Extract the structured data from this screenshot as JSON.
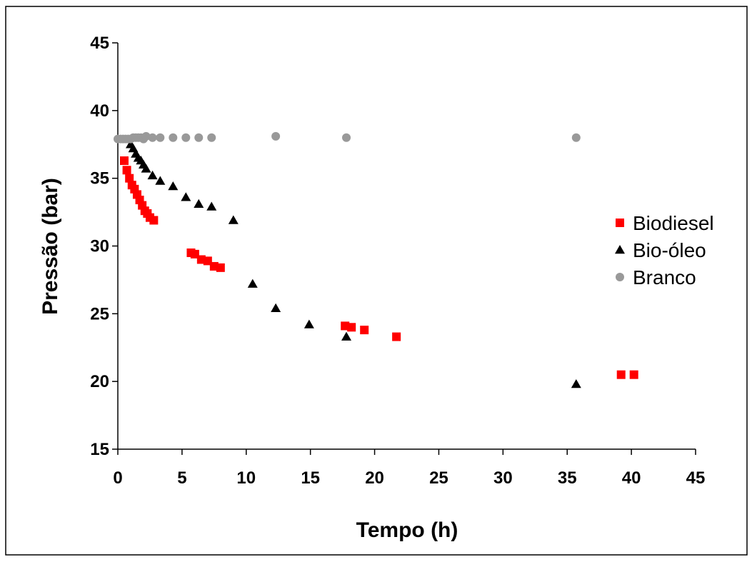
{
  "chart_data": {
    "type": "scatter",
    "xlabel": "Tempo (h)",
    "ylabel": "Pressão (bar)",
    "xlim": [
      0,
      45
    ],
    "ylim": [
      15,
      45
    ],
    "xticks": [
      0,
      5,
      10,
      15,
      20,
      25,
      30,
      35,
      40,
      45
    ],
    "yticks": [
      15,
      20,
      25,
      30,
      35,
      40,
      45
    ],
    "grid": false,
    "legend_position": "right",
    "series": [
      {
        "name": "Biodiesel",
        "marker": "square",
        "color": "#ff0000",
        "points": [
          [
            0.5,
            36.3
          ],
          [
            0.7,
            35.6
          ],
          [
            0.9,
            35.0
          ],
          [
            1.1,
            34.5
          ],
          [
            1.3,
            34.2
          ],
          [
            1.5,
            33.8
          ],
          [
            1.7,
            33.4
          ],
          [
            1.9,
            33.0
          ],
          [
            2.1,
            32.6
          ],
          [
            2.3,
            32.4
          ],
          [
            2.5,
            32.1
          ],
          [
            2.8,
            31.9
          ],
          [
            5.7,
            29.5
          ],
          [
            6.0,
            29.4
          ],
          [
            6.5,
            29.0
          ],
          [
            7.0,
            28.9
          ],
          [
            7.5,
            28.5
          ],
          [
            8.0,
            28.4
          ],
          [
            17.7,
            24.1
          ],
          [
            18.2,
            24.0
          ],
          [
            19.2,
            23.8
          ],
          [
            21.7,
            23.3
          ],
          [
            39.2,
            20.5
          ],
          [
            40.2,
            20.5
          ]
        ]
      },
      {
        "name": "Bio-óleo",
        "marker": "triangle",
        "color": "#000000",
        "points": [
          [
            1.0,
            37.5
          ],
          [
            1.2,
            37.2
          ],
          [
            1.4,
            36.8
          ],
          [
            1.6,
            36.5
          ],
          [
            1.8,
            36.3
          ],
          [
            2.0,
            36.0
          ],
          [
            2.2,
            35.7
          ],
          [
            2.7,
            35.2
          ],
          [
            3.3,
            34.8
          ],
          [
            4.3,
            34.4
          ],
          [
            5.3,
            33.6
          ],
          [
            6.3,
            33.1
          ],
          [
            7.3,
            32.9
          ],
          [
            9.0,
            31.9
          ],
          [
            10.5,
            27.2
          ],
          [
            12.3,
            25.4
          ],
          [
            14.9,
            24.2
          ],
          [
            17.8,
            23.3
          ],
          [
            35.7,
            19.8
          ]
        ]
      },
      {
        "name": "Branco",
        "marker": "circle",
        "color": "#999999",
        "points": [
          [
            0.0,
            37.9
          ],
          [
            0.2,
            37.9
          ],
          [
            0.4,
            37.9
          ],
          [
            0.6,
            37.9
          ],
          [
            0.8,
            37.9
          ],
          [
            1.0,
            37.9
          ],
          [
            1.2,
            38.0
          ],
          [
            1.4,
            38.0
          ],
          [
            1.6,
            38.0
          ],
          [
            1.8,
            38.0
          ],
          [
            2.0,
            37.9
          ],
          [
            2.2,
            38.1
          ],
          [
            2.7,
            38.0
          ],
          [
            3.3,
            38.0
          ],
          [
            4.3,
            38.0
          ],
          [
            5.3,
            38.0
          ],
          [
            6.3,
            38.0
          ],
          [
            7.3,
            38.0
          ],
          [
            12.3,
            38.1
          ],
          [
            17.8,
            38.0
          ],
          [
            35.7,
            38.0
          ]
        ]
      }
    ]
  }
}
